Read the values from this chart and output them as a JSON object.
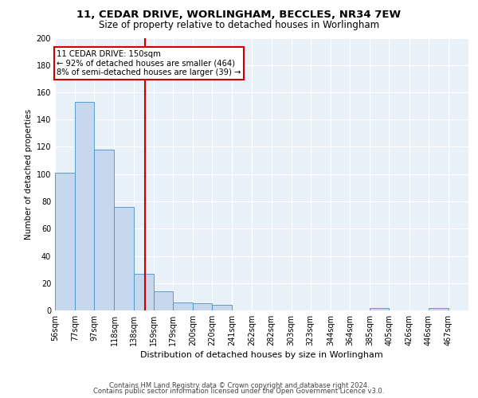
{
  "title_line1": "11, CEDAR DRIVE, WORLINGHAM, BECCLES, NR34 7EW",
  "title_line2": "Size of property relative to detached houses in Worlingham",
  "xlabel": "Distribution of detached houses by size in Worlingham",
  "ylabel": "Number of detached properties",
  "footer_line1": "Contains HM Land Registry data © Crown copyright and database right 2024.",
  "footer_line2": "Contains public sector information licensed under the Open Government Licence v3.0.",
  "annotation_line1": "11 CEDAR DRIVE: 150sqm",
  "annotation_line2": "← 92% of detached houses are smaller (464)",
  "annotation_line3": "8% of semi-detached houses are larger (39) →",
  "bar_edges": [
    56,
    77,
    97,
    118,
    138,
    159,
    179,
    200,
    220,
    241,
    262,
    282,
    303,
    323,
    344,
    364,
    385,
    405,
    426,
    446,
    467
  ],
  "bar_values": [
    101,
    153,
    118,
    76,
    27,
    14,
    6,
    5,
    4,
    0,
    0,
    0,
    0,
    0,
    0,
    0,
    2,
    0,
    0,
    2,
    0
  ],
  "bar_color": "#c5d8ed",
  "bar_edge_color": "#4a90c4",
  "vline_x": 150,
  "vline_color": "#cc0000",
  "plot_bg_color": "#e8f0f8",
  "ylim": [
    0,
    200
  ],
  "yticks": [
    0,
    20,
    40,
    60,
    80,
    100,
    120,
    140,
    160,
    180,
    200
  ],
  "annotation_box_color": "#cc0000",
  "grid_color": "#ffffff",
  "title_fontsize": 9.5,
  "subtitle_fontsize": 8.5,
  "ylabel_fontsize": 7.5,
  "xlabel_fontsize": 8,
  "tick_fontsize": 7,
  "footer_fontsize": 6
}
